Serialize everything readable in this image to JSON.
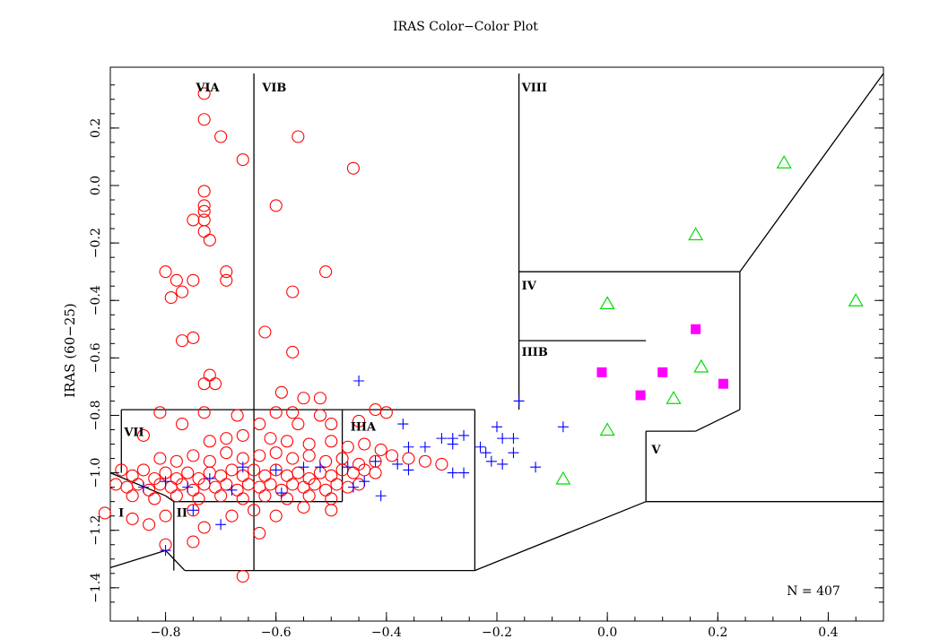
{
  "chart_data": {
    "type": "scatter",
    "title": "IRAS Color−Color Plot",
    "xlabel": "",
    "ylabel": "IRAS (60−25)",
    "xlim": [
      -0.9,
      0.5
    ],
    "ylim": [
      -1.45,
      0.39
    ],
    "x_ticks": [
      -0.8,
      -0.6,
      -0.4,
      -0.2,
      0.0,
      0.2,
      0.4
    ],
    "x_tick_labels": [
      "−0.8",
      "−0.6",
      "−0.4",
      "−0.2",
      "0.0",
      "0.2",
      "0.4"
    ],
    "y_ticks": [
      0.2,
      0.0,
      -0.2,
      -0.4,
      -0.6,
      -0.8,
      -1.0,
      -1.2,
      -1.4
    ],
    "y_tick_labels": [
      "0.2",
      "0.0",
      "−0.2",
      "−0.4",
      "−0.6",
      "−0.8",
      "−1.0",
      "−1.2",
      "−1.4"
    ],
    "annotation": "N = 407",
    "colors": {
      "circle": "#ff0000",
      "plus": "#0000ff",
      "square": "#ff00ff",
      "triangle": "#00dd00"
    },
    "region_labels": [
      {
        "text": "VIA",
        "x": -0.75,
        "y": 0.34
      },
      {
        "text": "VIB",
        "x": -0.63,
        "y": 0.34
      },
      {
        "text": "VIII",
        "x": -0.16,
        "y": 0.34
      },
      {
        "text": "IV",
        "x": -0.16,
        "y": -0.35
      },
      {
        "text": "IIIB",
        "x": -0.16,
        "y": -0.58
      },
      {
        "text": "IIIA",
        "x": -0.47,
        "y": -0.84
      },
      {
        "text": "VII",
        "x": -0.88,
        "y": -0.86
      },
      {
        "text": "V",
        "x": 0.075,
        "y": -0.92
      },
      {
        "text": "I",
        "x": -0.89,
        "y": -1.14
      },
      {
        "text": "II",
        "x": -0.785,
        "y": -1.14
      }
    ],
    "boundaries": [
      [
        [
          -0.64,
          0.39
        ],
        [
          -0.64,
          -1.34
        ]
      ],
      [
        [
          -0.16,
          0.39
        ],
        [
          -0.16,
          -0.78
        ]
      ],
      [
        [
          -0.16,
          -0.3
        ],
        [
          0.24,
          -0.3
        ]
      ],
      [
        [
          0.24,
          -0.3
        ],
        [
          0.24,
          -0.78
        ]
      ],
      [
        [
          0.24,
          -0.78
        ],
        [
          0.16,
          -0.855
        ]
      ],
      [
        [
          0.16,
          -0.855
        ],
        [
          0.07,
          -0.855
        ]
      ],
      [
        [
          0.07,
          -0.855
        ],
        [
          0.07,
          -1.1
        ]
      ],
      [
        [
          0.07,
          -1.1
        ],
        [
          0.5,
          -1.1
        ]
      ],
      [
        [
          0.24,
          -0.3
        ],
        [
          0.5,
          0.39
        ]
      ],
      [
        [
          -0.16,
          -0.54
        ],
        [
          0.07,
          -0.54
        ]
      ],
      [
        [
          -0.88,
          -0.78
        ],
        [
          -0.24,
          -0.78
        ]
      ],
      [
        [
          -0.88,
          -0.78
        ],
        [
          -0.88,
          -1.0
        ]
      ],
      [
        [
          -0.24,
          -0.78
        ],
        [
          -0.24,
          -1.34
        ]
      ],
      [
        [
          -0.24,
          -1.34
        ],
        [
          0.07,
          -1.1
        ]
      ],
      [
        [
          -0.48,
          -0.78
        ],
        [
          -0.48,
          -1.1
        ]
      ],
      [
        [
          -0.785,
          -1.1
        ],
        [
          -0.48,
          -1.1
        ]
      ],
      [
        [
          -0.785,
          -1.1
        ],
        [
          -0.785,
          -1.34
        ]
      ],
      [
        [
          -0.765,
          -1.34
        ],
        [
          -0.24,
          -1.34
        ]
      ],
      [
        [
          -0.9,
          -1.0
        ],
        [
          -0.8,
          -1.08
        ]
      ],
      [
        [
          -0.8,
          -1.08
        ],
        [
          -0.785,
          -1.1
        ]
      ],
      [
        [
          -0.9,
          -1.33
        ],
        [
          -0.8,
          -1.27
        ]
      ],
      [
        [
          -0.8,
          -1.27
        ],
        [
          -0.765,
          -1.34
        ]
      ]
    ],
    "series": [
      {
        "marker": "circle",
        "points": [
          [
            -0.73,
            0.32
          ],
          [
            -0.73,
            0.23
          ],
          [
            -0.7,
            0.17
          ],
          [
            -0.66,
            0.09
          ],
          [
            -0.56,
            0.17
          ],
          [
            -0.46,
            0.06
          ],
          [
            -0.73,
            -0.02
          ],
          [
            -0.73,
            -0.07
          ],
          [
            -0.73,
            -0.09
          ],
          [
            -0.73,
            -0.12
          ],
          [
            -0.73,
            -0.16
          ],
          [
            -0.75,
            -0.12
          ],
          [
            -0.72,
            -0.19
          ],
          [
            -0.6,
            -0.07
          ],
          [
            -0.51,
            -0.3
          ],
          [
            -0.69,
            -0.3
          ],
          [
            -0.69,
            -0.33
          ],
          [
            -0.75,
            -0.33
          ],
          [
            -0.78,
            -0.33
          ],
          [
            -0.8,
            -0.3
          ],
          [
            -0.77,
            -0.37
          ],
          [
            -0.79,
            -0.39
          ],
          [
            -0.75,
            -0.53
          ],
          [
            -0.77,
            -0.54
          ],
          [
            -0.57,
            -0.37
          ],
          [
            -0.62,
            -0.51
          ],
          [
            -0.57,
            -0.58
          ],
          [
            -0.72,
            -0.66
          ],
          [
            -0.73,
            -0.69
          ],
          [
            -0.71,
            -0.69
          ],
          [
            -0.59,
            -0.72
          ],
          [
            -0.55,
            -0.74
          ],
          [
            -0.52,
            -0.74
          ],
          [
            -0.42,
            -0.78
          ],
          [
            -0.81,
            -0.79
          ],
          [
            -0.73,
            -0.79
          ],
          [
            -0.6,
            -0.79
          ],
          [
            -0.57,
            -0.79
          ],
          [
            -0.67,
            -0.8
          ],
          [
            -0.52,
            -0.8
          ],
          [
            -0.4,
            -0.79
          ],
          [
            -0.45,
            -0.82
          ],
          [
            -0.5,
            -0.83
          ],
          [
            -0.56,
            -0.83
          ],
          [
            -0.63,
            -0.83
          ],
          [
            -0.77,
            -0.83
          ],
          [
            -0.84,
            -0.87
          ],
          [
            -0.72,
            -0.89
          ],
          [
            -0.69,
            -0.88
          ],
          [
            -0.66,
            -0.87
          ],
          [
            -0.61,
            -0.88
          ],
          [
            -0.58,
            -0.89
          ],
          [
            -0.54,
            -0.9
          ],
          [
            -0.5,
            -0.89
          ],
          [
            -0.47,
            -0.91
          ],
          [
            -0.44,
            -0.9
          ],
          [
            -0.41,
            -0.92
          ],
          [
            -0.39,
            -0.94
          ],
          [
            -0.36,
            -0.95
          ],
          [
            -0.33,
            -0.96
          ],
          [
            -0.3,
            -0.97
          ],
          [
            -0.81,
            -0.95
          ],
          [
            -0.78,
            -0.96
          ],
          [
            -0.75,
            -0.94
          ],
          [
            -0.72,
            -0.96
          ],
          [
            -0.69,
            -0.93
          ],
          [
            -0.66,
            -0.95
          ],
          [
            -0.63,
            -0.94
          ],
          [
            -0.6,
            -0.93
          ],
          [
            -0.57,
            -0.95
          ],
          [
            -0.54,
            -0.94
          ],
          [
            -0.51,
            -0.96
          ],
          [
            -0.48,
            -0.95
          ],
          [
            -0.45,
            -0.97
          ],
          [
            -0.42,
            -0.96
          ],
          [
            -0.88,
            -0.99
          ],
          [
            -0.86,
            -1.01
          ],
          [
            -0.84,
            -0.99
          ],
          [
            -0.82,
            -1.02
          ],
          [
            -0.8,
            -1.0
          ],
          [
            -0.78,
            -1.02
          ],
          [
            -0.76,
            -1.0
          ],
          [
            -0.74,
            -1.02
          ],
          [
            -0.72,
            -1.0
          ],
          [
            -0.7,
            -1.01
          ],
          [
            -0.68,
            -0.99
          ],
          [
            -0.66,
            -1.01
          ],
          [
            -0.64,
            -0.99
          ],
          [
            -0.62,
            -1.01
          ],
          [
            -0.6,
            -0.99
          ],
          [
            -0.58,
            -1.01
          ],
          [
            -0.56,
            -1.0
          ],
          [
            -0.54,
            -1.02
          ],
          [
            -0.52,
            -1.0
          ],
          [
            -0.5,
            -1.01
          ],
          [
            -0.48,
            -0.99
          ],
          [
            -0.46,
            -1.0
          ],
          [
            -0.44,
            -0.99
          ],
          [
            -0.42,
            -1.0
          ],
          [
            -0.89,
            -1.04
          ],
          [
            -0.87,
            -1.05
          ],
          [
            -0.85,
            -1.04
          ],
          [
            -0.83,
            -1.06
          ],
          [
            -0.81,
            -1.04
          ],
          [
            -0.79,
            -1.05
          ],
          [
            -0.77,
            -1.04
          ],
          [
            -0.75,
            -1.06
          ],
          [
            -0.73,
            -1.04
          ],
          [
            -0.71,
            -1.05
          ],
          [
            -0.69,
            -1.04
          ],
          [
            -0.67,
            -1.06
          ],
          [
            -0.65,
            -1.04
          ],
          [
            -0.63,
            -1.05
          ],
          [
            -0.61,
            -1.04
          ],
          [
            -0.59,
            -1.06
          ],
          [
            -0.57,
            -1.04
          ],
          [
            -0.55,
            -1.05
          ],
          [
            -0.53,
            -1.04
          ],
          [
            -0.51,
            -1.06
          ],
          [
            -0.49,
            -1.04
          ],
          [
            -0.47,
            -1.05
          ],
          [
            -0.45,
            -1.04
          ],
          [
            -0.86,
            -1.08
          ],
          [
            -0.82,
            -1.09
          ],
          [
            -0.78,
            -1.08
          ],
          [
            -0.74,
            -1.09
          ],
          [
            -0.7,
            -1.08
          ],
          [
            -0.66,
            -1.09
          ],
          [
            -0.62,
            -1.08
          ],
          [
            -0.58,
            -1.09
          ],
          [
            -0.54,
            -1.08
          ],
          [
            -0.5,
            -1.09
          ],
          [
            -0.91,
            -1.14
          ],
          [
            -0.86,
            -1.16
          ],
          [
            -0.8,
            -1.15
          ],
          [
            -0.75,
            -1.13
          ],
          [
            -0.68,
            -1.15
          ],
          [
            -0.64,
            -1.13
          ],
          [
            -0.6,
            -1.15
          ],
          [
            -0.55,
            -1.12
          ],
          [
            -0.5,
            -1.13
          ],
          [
            -0.83,
            -1.18
          ],
          [
            -0.73,
            -1.19
          ],
          [
            -0.63,
            -1.21
          ],
          [
            -0.8,
            -1.25
          ],
          [
            -0.75,
            -1.24
          ],
          [
            -0.66,
            -1.36
          ]
        ]
      },
      {
        "marker": "plus",
        "points": [
          [
            -0.45,
            -0.68
          ],
          [
            -0.16,
            -0.75
          ],
          [
            -0.08,
            -0.84
          ],
          [
            -0.37,
            -0.83
          ],
          [
            -0.26,
            -0.87
          ],
          [
            -0.2,
            -0.84
          ],
          [
            -0.19,
            -0.88
          ],
          [
            -0.17,
            -0.88
          ],
          [
            -0.28,
            -0.88
          ],
          [
            -0.28,
            -0.9
          ],
          [
            -0.3,
            -0.88
          ],
          [
            -0.33,
            -0.91
          ],
          [
            -0.36,
            -0.91
          ],
          [
            -0.23,
            -0.91
          ],
          [
            -0.22,
            -0.93
          ],
          [
            -0.17,
            -0.93
          ],
          [
            -0.19,
            -0.97
          ],
          [
            -0.21,
            -0.96
          ],
          [
            -0.13,
            -0.98
          ],
          [
            -0.38,
            -0.97
          ],
          [
            -0.36,
            -0.99
          ],
          [
            -0.42,
            -0.96
          ],
          [
            -0.28,
            -1.0
          ],
          [
            -0.26,
            -1.0
          ],
          [
            -0.47,
            -0.98
          ],
          [
            -0.52,
            -0.98
          ],
          [
            -0.55,
            -0.98
          ],
          [
            -0.6,
            -0.99
          ],
          [
            -0.66,
            -0.98
          ],
          [
            -0.72,
            -1.02
          ],
          [
            -0.76,
            -1.05
          ],
          [
            -0.8,
            -1.03
          ],
          [
            -0.84,
            -1.05
          ],
          [
            -0.46,
            -1.05
          ],
          [
            -0.68,
            -1.06
          ],
          [
            -0.59,
            -1.07
          ],
          [
            -0.75,
            -1.13
          ],
          [
            -0.7,
            -1.18
          ],
          [
            -0.8,
            -1.27
          ],
          [
            -0.44,
            -1.03
          ],
          [
            -0.41,
            -1.08
          ]
        ]
      },
      {
        "marker": "square",
        "points": [
          [
            -0.01,
            -0.65
          ],
          [
            0.06,
            -0.73
          ],
          [
            0.1,
            -0.65
          ],
          [
            0.16,
            -0.5
          ],
          [
            0.21,
            -0.69
          ]
        ]
      },
      {
        "marker": "triangle",
        "points": [
          [
            0.32,
            0.08
          ],
          [
            0.16,
            -0.17
          ],
          [
            0.0,
            -0.41
          ],
          [
            0.45,
            -0.4
          ],
          [
            0.17,
            -0.63
          ],
          [
            0.12,
            -0.74
          ],
          [
            0.0,
            -0.85
          ],
          [
            -0.08,
            -1.02
          ]
        ]
      }
    ]
  }
}
